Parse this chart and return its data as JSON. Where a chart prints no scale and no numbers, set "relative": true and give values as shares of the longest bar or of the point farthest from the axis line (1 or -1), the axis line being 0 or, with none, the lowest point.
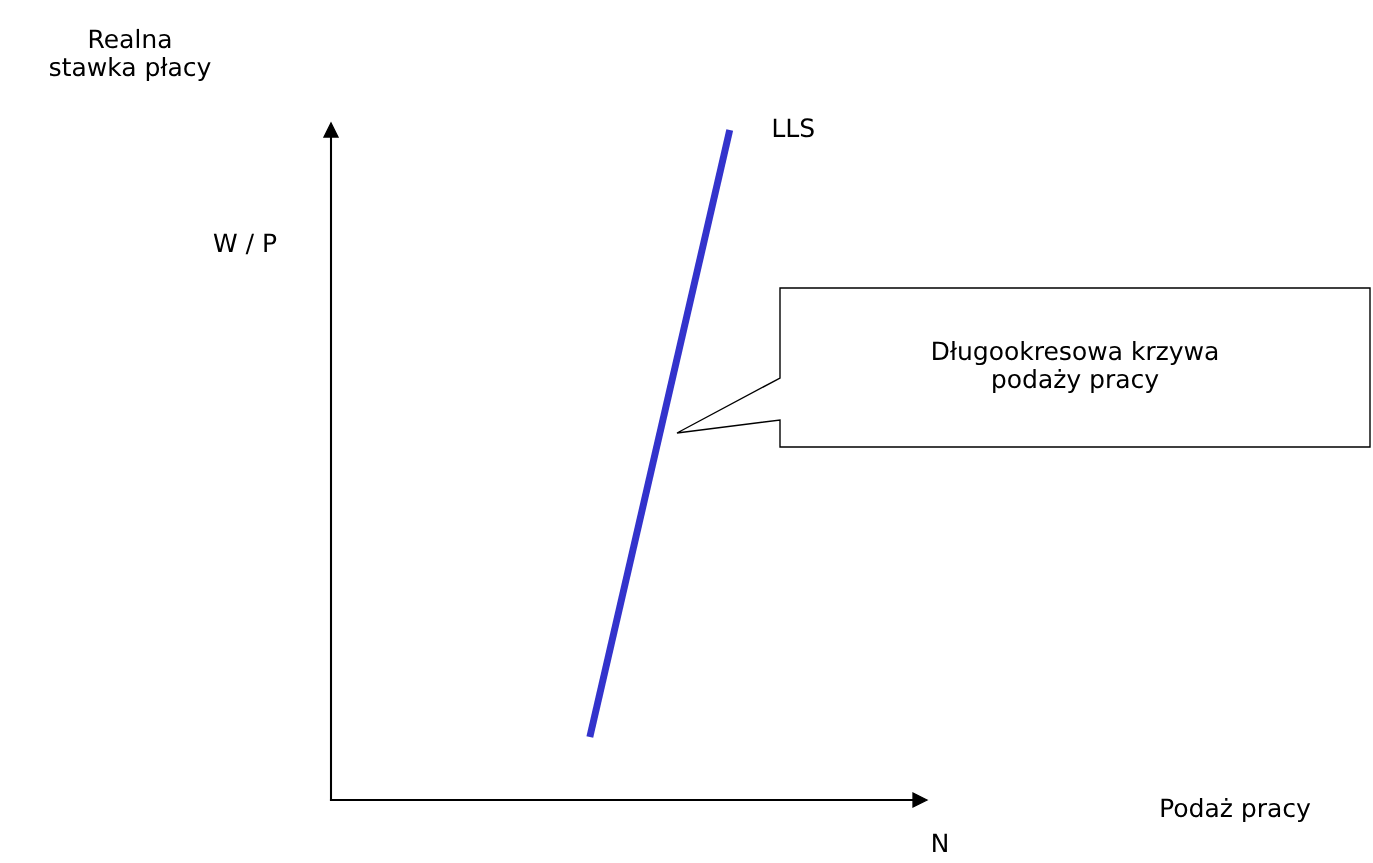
{
  "chart_data": {
    "type": "line",
    "relative": true,
    "categories": [
      null,
      null
    ],
    "series": [
      {
        "name": "LLS",
        "color": "#3333cc",
        "values": [
          0.094,
          1
        ]
      }
    ],
    "annotations": [
      "Realna\nstawka płacy",
      "W / P",
      "Podaż pracy",
      "N",
      "Długookresowa krzywa\npodaży pracy"
    ],
    "marker": "none",
    "line_style": "solid"
  }
}
